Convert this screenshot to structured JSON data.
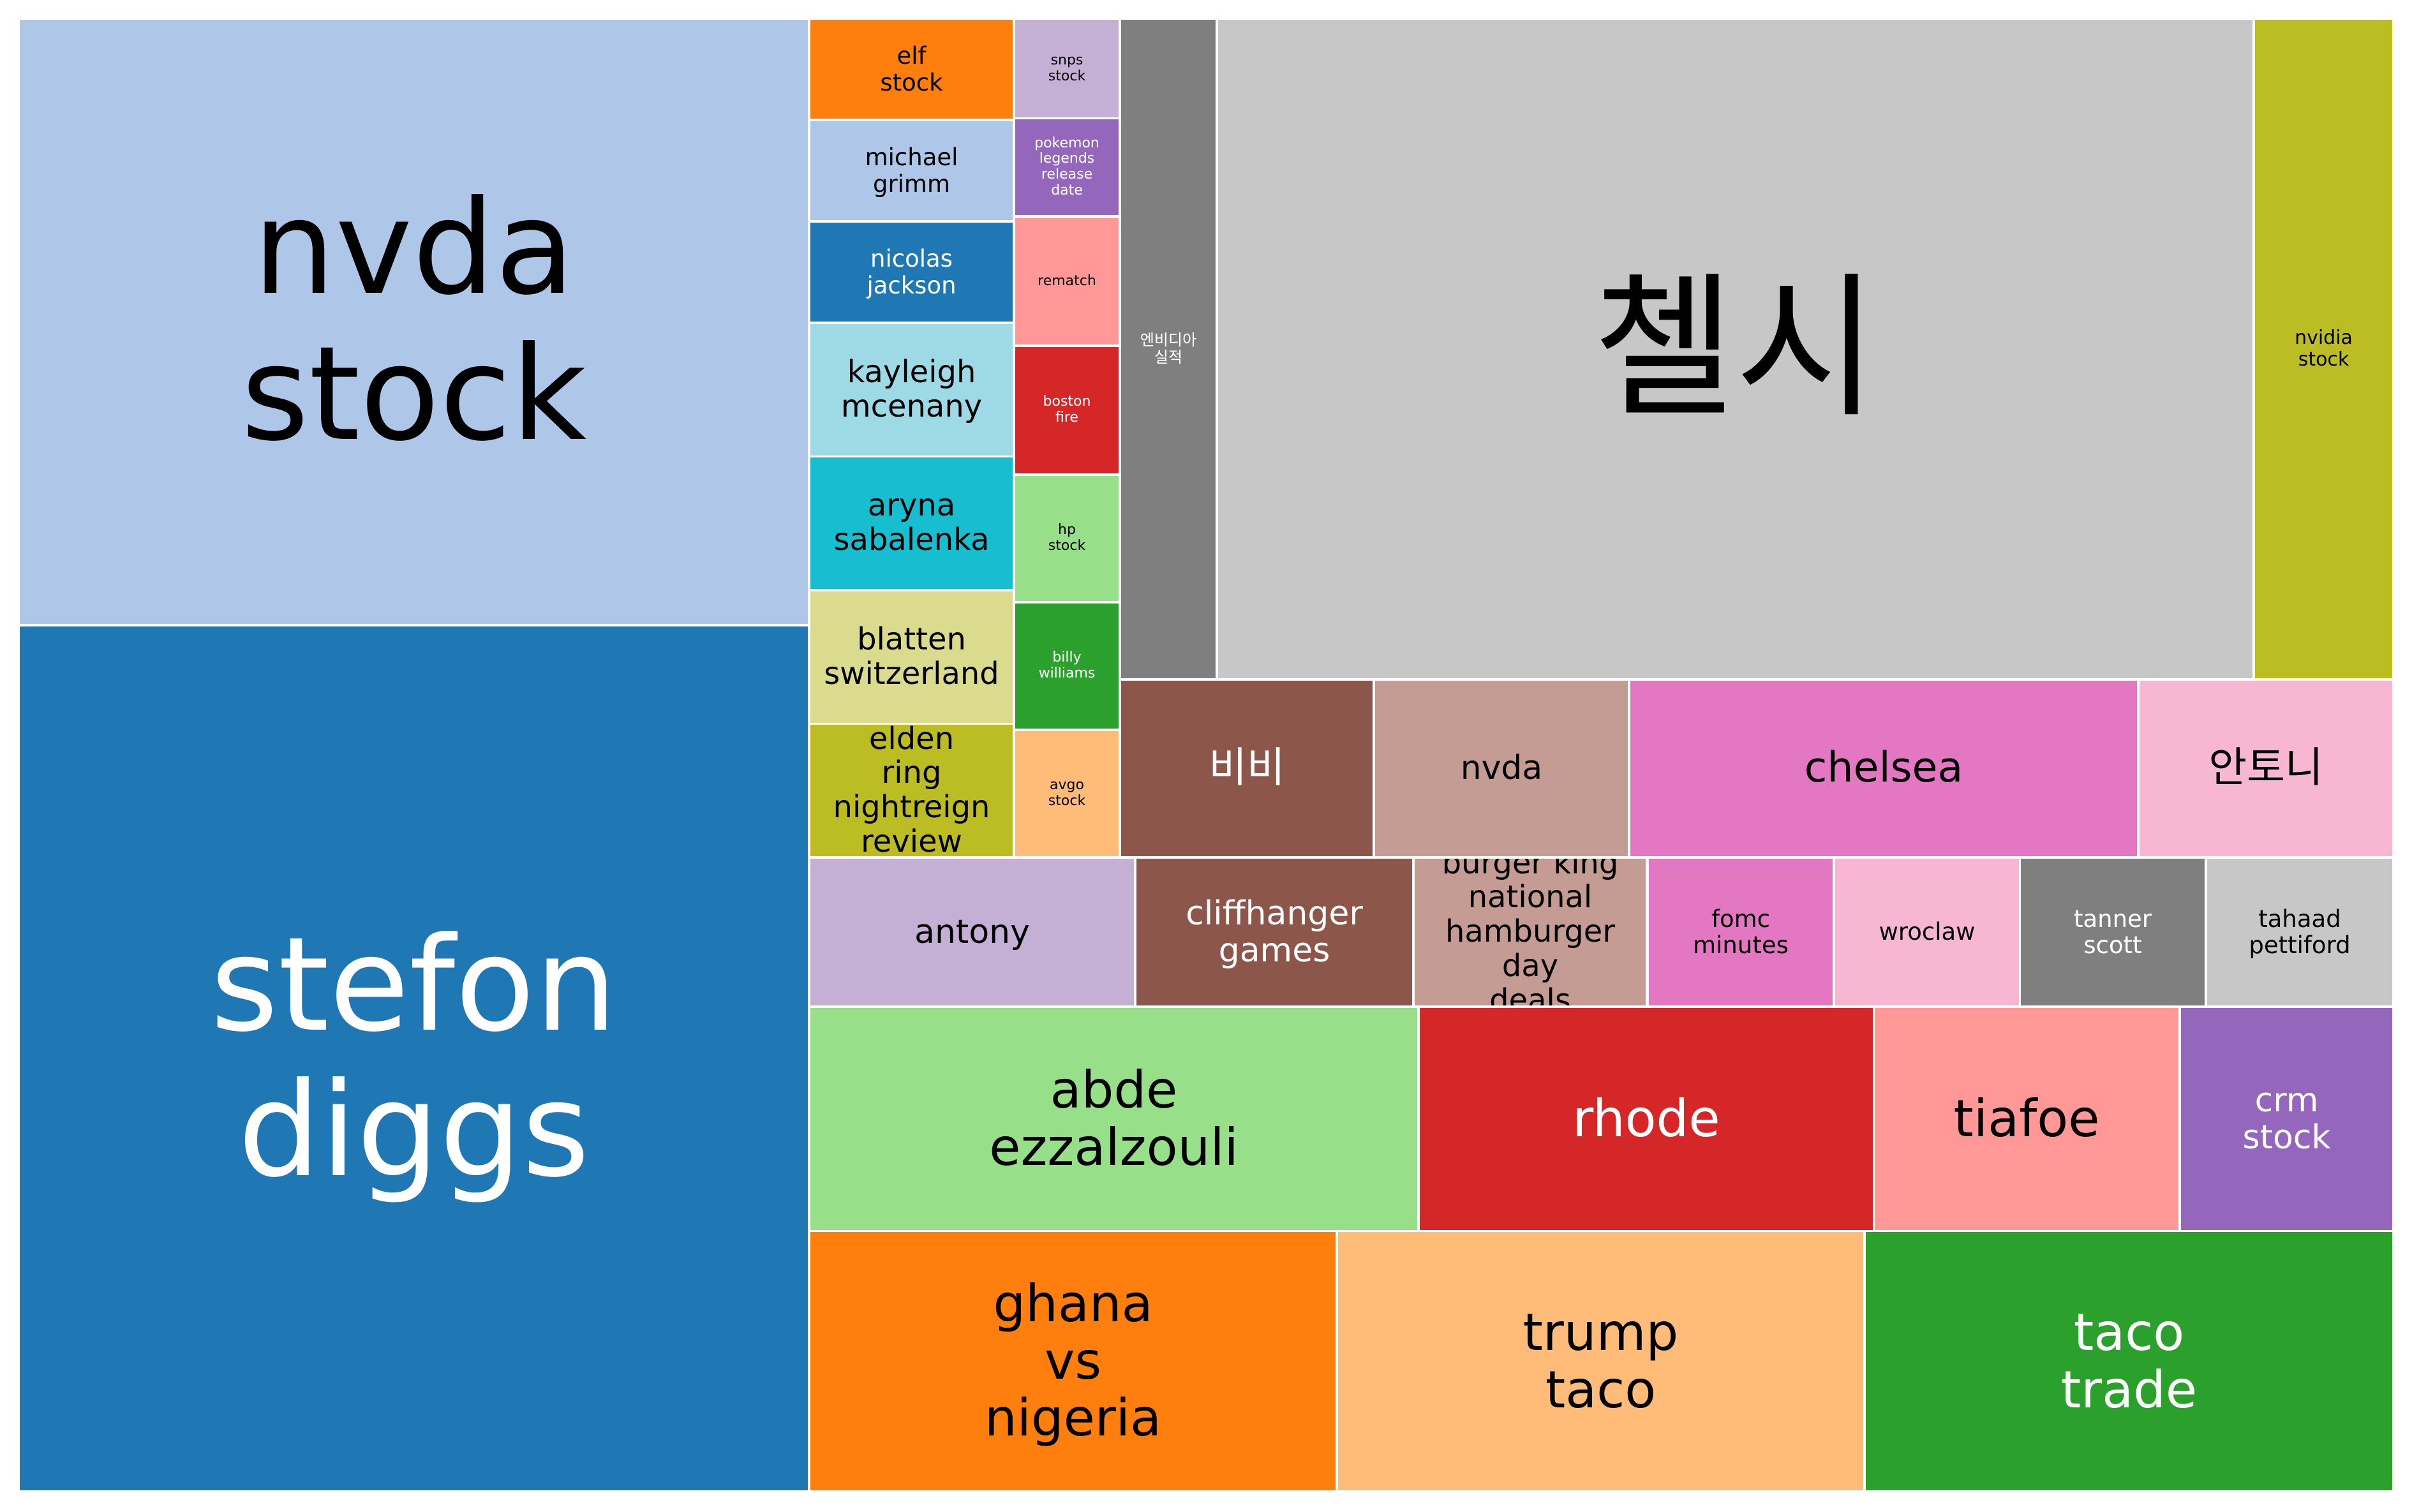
{
  "chart_data": {
    "type": "treemap",
    "title": "",
    "note": "values are relative tile areas estimated from the picture (no numeric labels are printed)",
    "items": [
      {
        "label": "nvda\nstock",
        "value": 2026,
        "color": "#aec7e8",
        "text_color": "#000000"
      },
      {
        "label": "stefon\ndiggs",
        "value": 2900,
        "color": "#1f77b4",
        "text_color": "#ffffff"
      },
      {
        "label": "elf\nstock",
        "value": 84,
        "color": "#ff7f0e",
        "text_color": "#000000"
      },
      {
        "label": "michael\ngrimm",
        "value": 84,
        "color": "#aec7e8",
        "text_color": "#000000"
      },
      {
        "label": "nicolas\njackson",
        "value": 84,
        "color": "#1f77b4",
        "text_color": "#ffffff"
      },
      {
        "label": "kayleigh\nmcenany",
        "value": 112,
        "color": "#9edae5",
        "text_color": "#000000"
      },
      {
        "label": "aryna\nsabalenka",
        "value": 112,
        "color": "#17becf",
        "text_color": "#000000"
      },
      {
        "label": "blatten\nswitzerland",
        "value": 112,
        "color": "#dbdb8d",
        "text_color": "#000000"
      },
      {
        "label": "elden\nring\nnightreign\nreview",
        "value": 112,
        "color": "#bcbd22",
        "text_color": "#000000"
      },
      {
        "label": "snps\nstock",
        "value": 40,
        "color": "#c5b0d5",
        "text_color": "#000000"
      },
      {
        "label": "pokemon\nlegends\nrelease\ndate",
        "value": 40,
        "color": "#9467bd",
        "text_color": "#ffffff"
      },
      {
        "label": "rematch",
        "value": 46,
        "color": "#ff9896",
        "text_color": "#000000"
      },
      {
        "label": "boston\nfire",
        "value": 46,
        "color": "#d62728",
        "text_color": "#ffffff"
      },
      {
        "label": "hp\nstock",
        "value": 46,
        "color": "#98df8a",
        "text_color": "#000000"
      },
      {
        "label": "billy\nwilliams",
        "value": 46,
        "color": "#2ca02c",
        "text_color": "#ffffff"
      },
      {
        "label": "avgo\nstock",
        "value": 46,
        "color": "#ffbb78",
        "text_color": "#000000"
      },
      {
        "label": "엔비디아\n실적",
        "value": 266,
        "color": "#7f7f7f",
        "text_color": "#ffffff"
      },
      {
        "label": "첼시",
        "value": 2908,
        "color": "#c7c7c7",
        "text_color": "#000000"
      },
      {
        "label": "nvidia\nstock",
        "value": 387,
        "color": "#bcbd22",
        "text_color": "#000000"
      },
      {
        "label": "비비",
        "value": 190,
        "color": "#8c564b",
        "text_color": "#ffffff"
      },
      {
        "label": "nvda",
        "value": 190,
        "color": "#c49c94",
        "text_color": "#000000"
      },
      {
        "label": "chelsea",
        "value": 383,
        "color": "#e377c2",
        "text_color": "#000000"
      },
      {
        "label": "안토니",
        "value": 190,
        "color": "#f7b6d2",
        "text_color": "#000000"
      },
      {
        "label": "antony",
        "value": 202,
        "color": "#c5b0d5",
        "text_color": "#000000"
      },
      {
        "label": "cliffhanger\ngames",
        "value": 174,
        "color": "#8c564b",
        "text_color": "#ffffff"
      },
      {
        "label": "burger king\nnational\nhamburger\nday\ndeals",
        "value": 145,
        "color": "#c49c94",
        "text_color": "#000000"
      },
      {
        "label": "fomc\nminutes",
        "value": 116,
        "color": "#e377c2",
        "text_color": "#000000"
      },
      {
        "label": "wroclaw",
        "value": 116,
        "color": "#f7b6d2",
        "text_color": "#000000"
      },
      {
        "label": "tanner\nscott",
        "value": 116,
        "color": "#7f7f7f",
        "text_color": "#ffffff"
      },
      {
        "label": "tahaad\npettiford",
        "value": 116,
        "color": "#c7c7c7",
        "text_color": "#000000"
      },
      {
        "label": "abde\nezzalzouli",
        "value": 578,
        "color": "#98df8a",
        "text_color": "#000000"
      },
      {
        "label": "rhode",
        "value": 434,
        "color": "#d62728",
        "text_color": "#ffffff"
      },
      {
        "label": "tiafoe",
        "value": 289,
        "color": "#ff9896",
        "text_color": "#000000"
      },
      {
        "label": "crm\nstock",
        "value": 202,
        "color": "#9467bd",
        "text_color": "#ffffff"
      },
      {
        "label": "ghana\nvs\nnigeria",
        "value": 578,
        "color": "#ff7f0e",
        "text_color": "#000000"
      },
      {
        "label": "trump\ntaco",
        "value": 578,
        "color": "#ffbb78",
        "text_color": "#000000"
      },
      {
        "label": "taco\ntrade",
        "value": 578,
        "color": "#2ca02c",
        "text_color": "#ffffff"
      }
    ]
  }
}
